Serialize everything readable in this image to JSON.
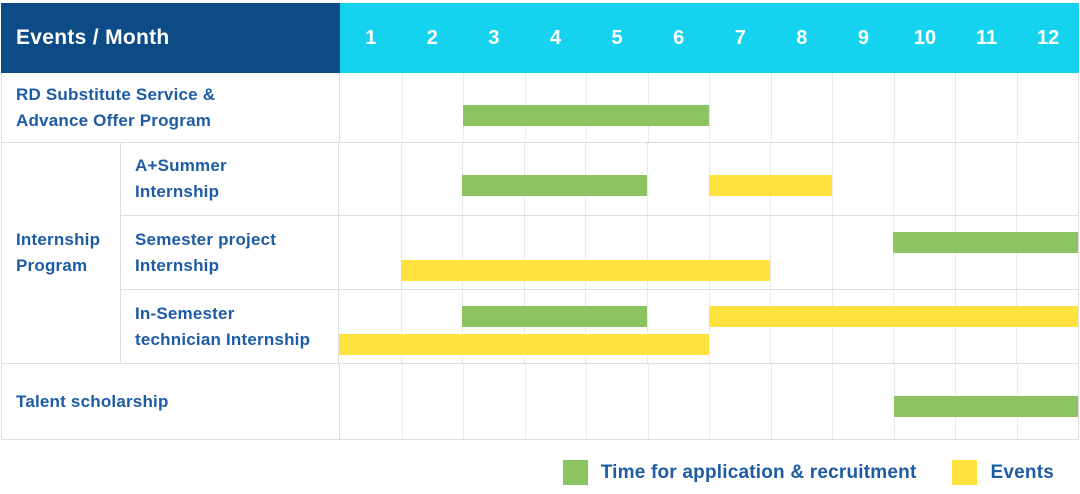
{
  "header": {
    "label": "Events / Month",
    "months": [
      "1",
      "2",
      "3",
      "4",
      "5",
      "6",
      "7",
      "8",
      "9",
      "10",
      "11",
      "12"
    ]
  },
  "group": {
    "label_lines": [
      "Internship",
      "Program"
    ]
  },
  "legend": [
    {
      "label": "Time for application & recruitment",
      "color_key": "green"
    },
    {
      "label": "Events",
      "color_key": "yellow"
    }
  ],
  "colors": {
    "header_navy": "#0d4b87",
    "header_cyan": "#15d2ef",
    "bar_green": "#8cc464",
    "bar_yellow": "#ffe23d",
    "label_blue": "#1d5ca5"
  },
  "chart_data": {
    "type": "gantt",
    "title": "Events / Month",
    "x_axis": {
      "label": "Month",
      "ticks": [
        1,
        2,
        3,
        4,
        5,
        6,
        7,
        8,
        9,
        10,
        11,
        12
      ],
      "range": [
        1,
        12
      ],
      "grid": true
    },
    "legend_entries": [
      {
        "name": "Time for application & recruitment",
        "color": "#8cc464"
      },
      {
        "name": "Events",
        "color": "#ffe23d"
      }
    ],
    "legend_position": "bottom-right",
    "rows": [
      {
        "group": null,
        "label": "RD Substitute Service & Advance Offer Program",
        "label_lines": [
          "RD Substitute Service &",
          "Advance Offer Program"
        ],
        "bars": [
          {
            "series": "Time for application & recruitment",
            "color_key": "green",
            "start_month": 3,
            "end_month": 6,
            "track": 1
          }
        ]
      },
      {
        "group": "Internship Program",
        "label": "A+Summer Internship",
        "label_lines": [
          "A+Summer",
          "Internship"
        ],
        "bars": [
          {
            "series": "Time for application & recruitment",
            "color_key": "green",
            "start_month": 3,
            "end_month": 5,
            "track": 1
          },
          {
            "series": "Events",
            "color_key": "yellow",
            "start_month": 7,
            "end_month": 8,
            "track": 1
          }
        ]
      },
      {
        "group": "Internship Program",
        "label": "Semester project Internship",
        "label_lines": [
          "Semester project",
          "Internship"
        ],
        "bars": [
          {
            "series": "Time for application & recruitment",
            "color_key": "green",
            "start_month": 10,
            "end_month": 12,
            "track": 1
          },
          {
            "series": "Events",
            "color_key": "yellow",
            "start_month": 2,
            "end_month": 7,
            "track": 2
          }
        ]
      },
      {
        "group": "Internship Program",
        "label": "In-Semester technician Internship",
        "label_lines": [
          "In-Semester",
          "technician Internship"
        ],
        "bars": [
          {
            "series": "Time for application & recruitment",
            "color_key": "green",
            "start_month": 3,
            "end_month": 5,
            "track": 1
          },
          {
            "series": "Events",
            "color_key": "yellow",
            "start_month": 7,
            "end_month": 12,
            "track": 1
          },
          {
            "series": "Events",
            "color_key": "yellow",
            "start_month": 1,
            "end_month": 6,
            "track": 2
          }
        ]
      },
      {
        "group": null,
        "label": "Talent scholarship",
        "label_lines": [
          "Talent scholarship"
        ],
        "bars": [
          {
            "series": "Time for application & recruitment",
            "color_key": "green",
            "start_month": 10,
            "end_month": 12,
            "track": 1
          }
        ]
      }
    ]
  }
}
